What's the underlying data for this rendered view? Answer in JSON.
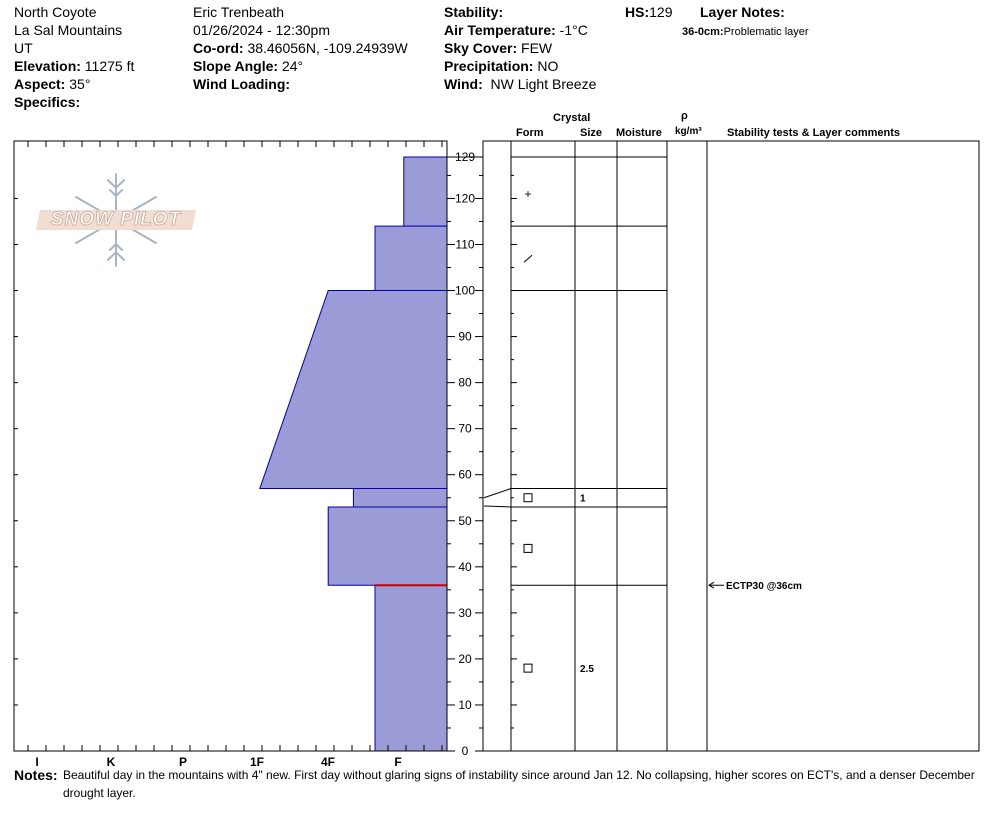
{
  "header": {
    "location": "North Coyote",
    "range": "La Sal Mountains",
    "state": "UT",
    "elevation_label": "Elevation:",
    "elevation_value": "11275 ft",
    "aspect_label": "Aspect:",
    "aspect_value": "35°",
    "specifics_label": "Specifics:",
    "observer": "Eric Trenbeath",
    "datetime": "01/26/2024 - 12:30pm",
    "coord_label": "Co-ord:",
    "coord_value": "38.46056N, -109.24939W",
    "slope_label": "Slope Angle:",
    "slope_value": "24°",
    "wind_loading_label": "Wind Loading:",
    "wind_loading_value": "",
    "stability_label": "Stability:",
    "stability_value": "",
    "air_temp_label": "Air Temperature:",
    "air_temp_value": "-1°C",
    "sky_label": "Sky Cover:",
    "sky_value": "FEW",
    "precip_label": "Precipitation:",
    "precip_value": "NO",
    "wind_label": "Wind:",
    "wind_value": "NW Light Breeze",
    "hs_label": "HS:",
    "hs_value": "129",
    "layer_notes_label": "Layer Notes:",
    "layer_note_range": "36-0cm:",
    "layer_note_text": "Problematic layer"
  },
  "logo_text": "SNOW PILOT",
  "columns": {
    "crystal": "Crystal",
    "form": "Form",
    "size": "Size",
    "moisture": "Moisture",
    "rho": "ρ",
    "density_unit": "kg/m³",
    "stability_comments": "Stability tests & Layer comments"
  },
  "notes_label": "Notes:",
  "notes_text": "Beautiful day in the mountains with 4\" new. First day without glaring signs of instability since around Jan 12. No collapsing, higher scores on ECT's, and a denser December drought layer.",
  "chart_data": {
    "type": "bar",
    "title": "",
    "x_categories": [
      "I",
      "K",
      "P",
      "1F",
      "4F",
      "F"
    ],
    "y_label": "",
    "ylim": [
      0,
      132
    ],
    "y_ticks": [
      0,
      10,
      20,
      30,
      40,
      50,
      60,
      70,
      80,
      90,
      100,
      110,
      120,
      129
    ],
    "colors": {
      "layer_fill": "#9b9bd8",
      "layer_stroke": "#0000aa",
      "weak_layer": "#cc0000"
    },
    "hardness_layers": [
      {
        "top": 129,
        "bottom": 114,
        "hardness_top": 0.6,
        "hardness_bottom": 0.6
      },
      {
        "top": 114,
        "bottom": 100,
        "hardness_top": 1.0,
        "hardness_bottom": 1.0
      },
      {
        "top": 100,
        "bottom": 57,
        "hardness_top": 1.65,
        "hardness_bottom": 2.6
      },
      {
        "top": 57,
        "bottom": 53,
        "hardness_top": 1.3,
        "hardness_bottom": 1.3
      },
      {
        "top": 53,
        "bottom": 36,
        "hardness_top": 1.65,
        "hardness_bottom": 1.65
      },
      {
        "top": 36,
        "bottom": 0,
        "hardness_top": 1.0,
        "hardness_bottom": 1.0
      }
    ],
    "weak_layer_depth": 36,
    "layer_boundaries": [
      129,
      114,
      100,
      57,
      53,
      36
    ],
    "crystals": [
      {
        "height": 121,
        "form": "+",
        "size": ""
      },
      {
        "height": 107,
        "form": "/",
        "size": ""
      },
      {
        "height": 55,
        "form": "□",
        "size": "1"
      },
      {
        "height": 44,
        "form": "□",
        "size": ""
      },
      {
        "height": 18,
        "form": "□",
        "size": "2.5"
      }
    ],
    "stability_tests": [
      {
        "height": 36,
        "text": "ECTP30 @36cm"
      }
    ]
  }
}
